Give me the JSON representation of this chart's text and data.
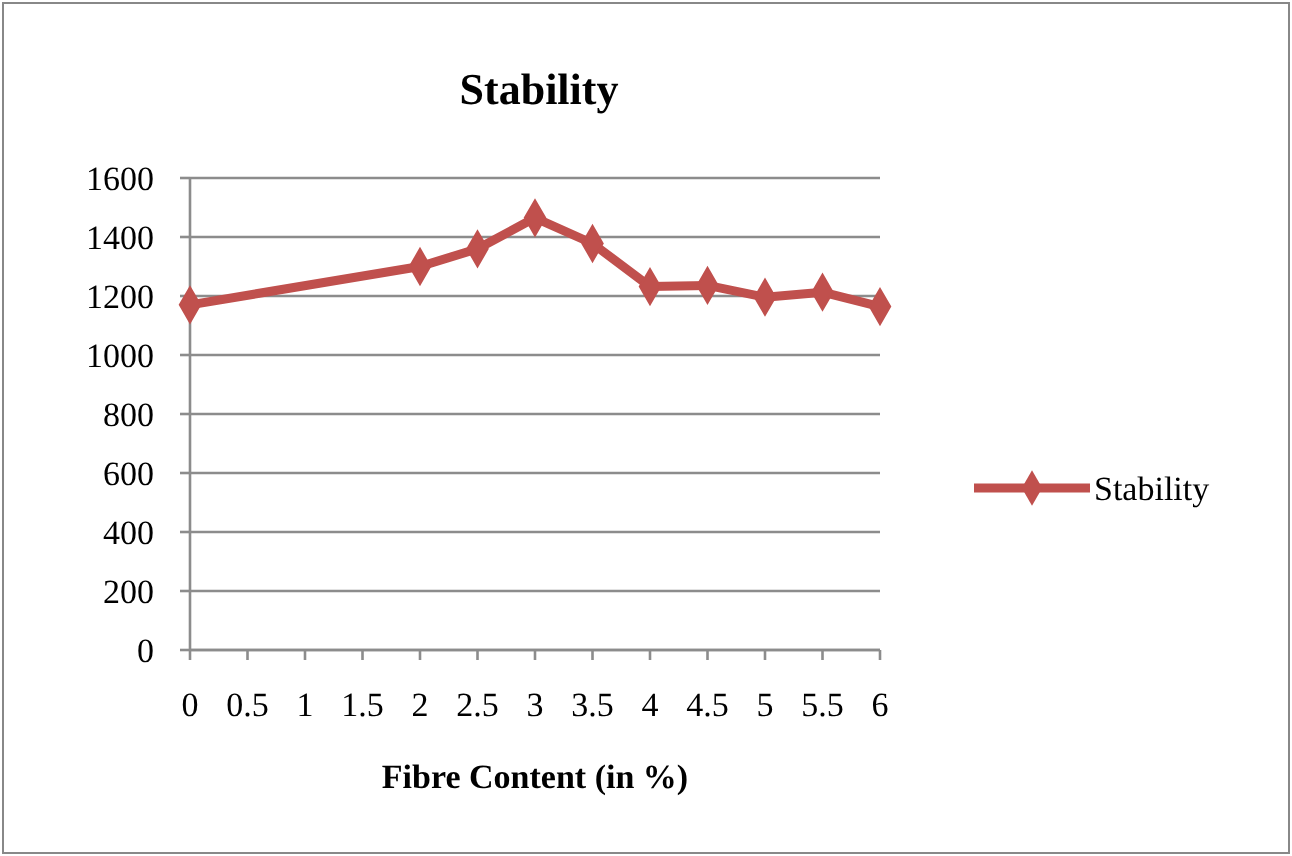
{
  "chart_data": {
    "type": "line",
    "title": "Stability",
    "xlabel": "Fibre Content (in %)",
    "x": [
      0,
      2,
      2.5,
      3,
      3.5,
      4,
      4.5,
      5,
      5.5,
      6
    ],
    "series": [
      {
        "name": "Stability",
        "color": "#c0504d",
        "values": [
          1170,
          1300,
          1360,
          1465,
          1378,
          1232,
          1236,
          1196,
          1213,
          1164
        ]
      }
    ],
    "xlim": [
      0,
      6
    ],
    "xticks": [
      0,
      0.5,
      1,
      1.5,
      2,
      2.5,
      3,
      3.5,
      4,
      4.5,
      5,
      5.5,
      6
    ],
    "ylim": [
      0,
      1600
    ],
    "yticks": [
      0,
      200,
      400,
      600,
      800,
      1000,
      1200,
      1400,
      1600
    ],
    "grid": "y",
    "legend": "right",
    "marker": "diamond",
    "line_style": "solid"
  }
}
